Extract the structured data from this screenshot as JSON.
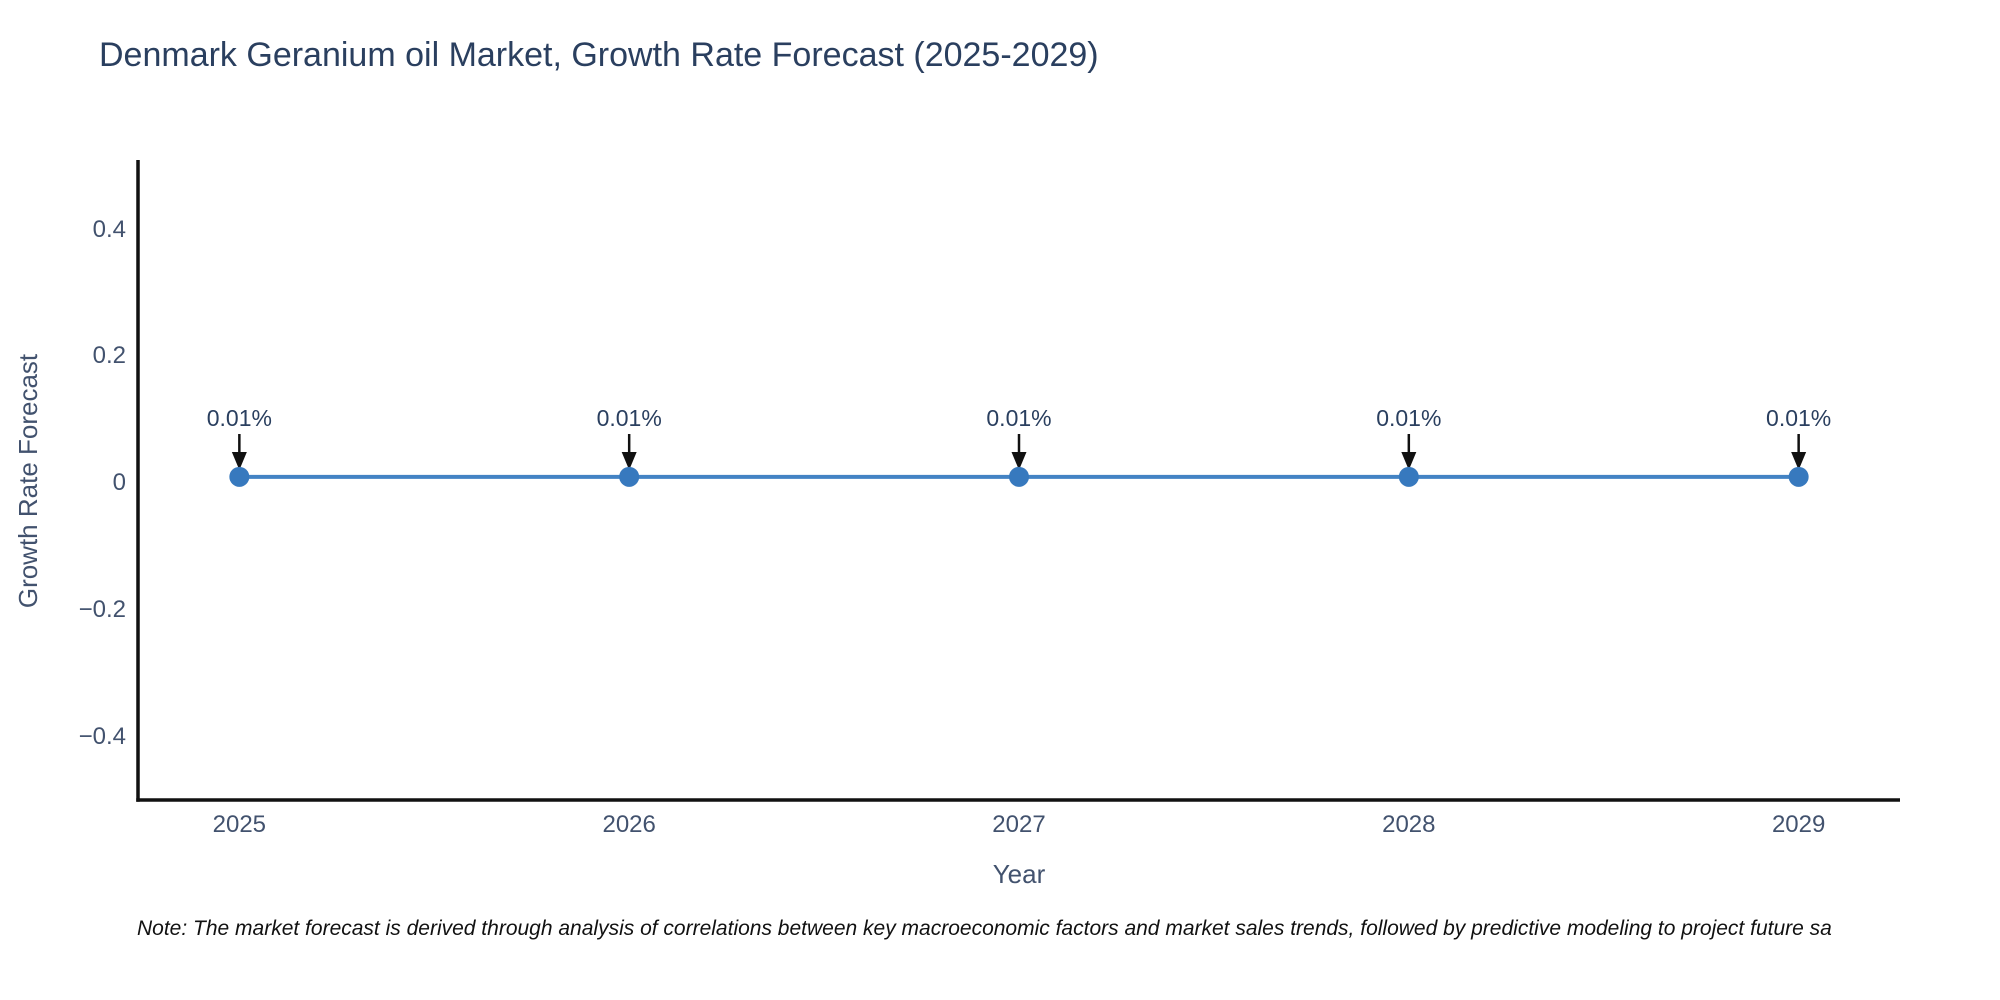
{
  "chart_data": {
    "type": "line",
    "title": "Denmark Geranium oil Market, Growth Rate Forecast (2025-2029)",
    "xlabel": "Year",
    "ylabel": "Growth Rate Forecast",
    "x": [
      2025,
      2026,
      2027,
      2028,
      2029
    ],
    "series": [
      {
        "name": "Growth Rate Forecast",
        "values": [
          0.01,
          0.01,
          0.01,
          0.01,
          0.01
        ]
      }
    ],
    "point_labels": [
      "0.01%",
      "0.01%",
      "0.01%",
      "0.01%",
      "0.01%"
    ],
    "xlim": [
      2024.74,
      2029.26
    ],
    "ylim": [
      -0.5,
      0.51
    ],
    "xticks": {
      "values": [
        2025,
        2026,
        2027,
        2028,
        2029
      ],
      "labels": [
        "2025",
        "2026",
        "2027",
        "2028",
        "2029"
      ]
    },
    "yticks": {
      "values": [
        0.4,
        0.2,
        0,
        -0.2,
        -0.4
      ],
      "labels": [
        "0.4",
        "0.2",
        "0",
        "−0.2",
        "−0.4"
      ]
    },
    "grid": false,
    "legend": "none",
    "colors": {
      "line": "#4383c4",
      "marker": "#3779be",
      "axis_line": "#111111",
      "arrow": "#111111",
      "title_text": "#2a3f5f",
      "axis_text": "#42526e",
      "annotation_text": "#2a3f5f",
      "note_text": "#111111",
      "background": "#ffffff"
    }
  },
  "note": "Note: The market forecast is derived through analysis of correlations between key macroeconomic factors and market sales trends, followed by predictive modeling to project future sa"
}
